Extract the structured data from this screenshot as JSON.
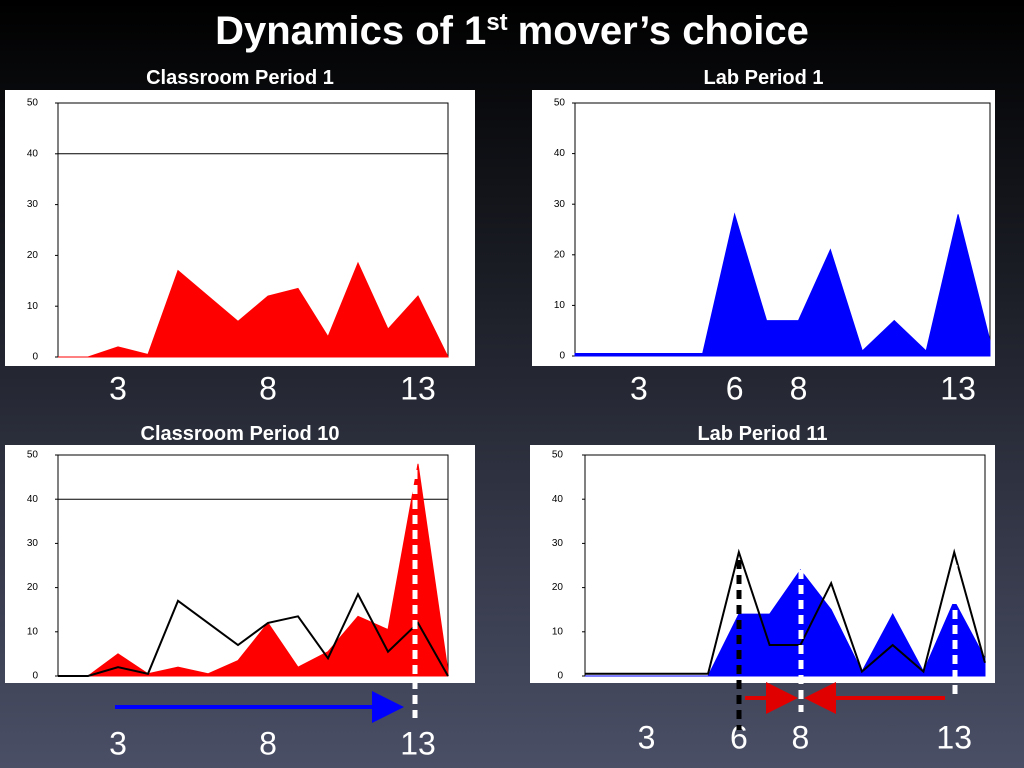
{
  "chart_data": [
    {
      "type": "area",
      "title": "Classroom Period 1",
      "x": [
        1,
        2,
        3,
        4,
        5,
        6,
        7,
        8,
        9,
        10,
        11,
        12,
        13,
        14
      ],
      "series": [
        {
          "color": "#ff0000",
          "values": [
            0,
            0,
            2,
            0.5,
            17,
            12,
            7,
            12,
            13.5,
            4,
            18.5,
            5.5,
            12,
            0
          ]
        }
      ],
      "xlim": [
        1,
        14
      ],
      "xticks": [
        3,
        8,
        13
      ],
      "ylim": [
        0,
        50
      ],
      "yticks": [
        0,
        10,
        20,
        30,
        40,
        50
      ],
      "hline": 40
    },
    {
      "type": "area",
      "title": "Lab Period 1",
      "x": [
        1,
        2,
        3,
        4,
        5,
        6,
        7,
        8,
        9,
        10,
        11,
        12,
        13,
        14
      ],
      "series": [
        {
          "color": "#0000ff",
          "values": [
            0.5,
            0.5,
            0.5,
            0.5,
            0.5,
            28,
            7,
            7,
            21,
            1,
            7,
            1,
            28,
            3
          ]
        }
      ],
      "xlim": [
        1,
        14
      ],
      "xticks": [
        3,
        6,
        8,
        13
      ],
      "ylim": [
        0,
        50
      ],
      "yticks": [
        0,
        10,
        20,
        30,
        40,
        50
      ]
    },
    {
      "type": "area",
      "title": "Classroom Period 10",
      "x": [
        1,
        2,
        3,
        4,
        5,
        6,
        7,
        8,
        9,
        10,
        11,
        12,
        13,
        14
      ],
      "series": [
        {
          "color": "#ff0000",
          "values": [
            0,
            0,
            5,
            0.5,
            2,
            0.5,
            3.5,
            12,
            2,
            5.5,
            13.5,
            10.5,
            48,
            1
          ]
        },
        {
          "color": "#000000",
          "style": "line",
          "values": [
            0,
            0,
            2,
            0.5,
            17,
            12,
            7,
            12,
            13.5,
            4,
            18.5,
            5.5,
            12,
            0
          ]
        }
      ],
      "xlim": [
        1,
        14
      ],
      "xticks": [
        3,
        8,
        13
      ],
      "ylim": [
        0,
        50
      ],
      "yticks": [
        0,
        10,
        20,
        30,
        40,
        50
      ],
      "hline": 40
    },
    {
      "type": "area",
      "title": "Lab Period 11",
      "x": [
        1,
        2,
        3,
        4,
        5,
        6,
        7,
        8,
        9,
        10,
        11,
        12,
        13,
        14
      ],
      "series": [
        {
          "color": "#0000ff",
          "values": [
            0,
            0,
            0,
            0,
            0,
            14,
            14,
            24,
            15,
            1,
            14,
            1,
            17,
            4
          ]
        },
        {
          "color": "#000000",
          "style": "line",
          "values": [
            0.5,
            0.5,
            0.5,
            0.5,
            0.5,
            28,
            7,
            7,
            21,
            1,
            7,
            1,
            28,
            3
          ]
        }
      ],
      "xlim": [
        1,
        14
      ],
      "xticks": [
        3,
        6,
        8,
        13
      ],
      "ylim": [
        0,
        50
      ],
      "yticks": [
        0,
        10,
        20,
        30,
        40,
        50
      ]
    }
  ],
  "slide": {
    "title": "Dynamics of 1",
    "title_sup": "st",
    "title_end": "mover’s choice"
  }
}
